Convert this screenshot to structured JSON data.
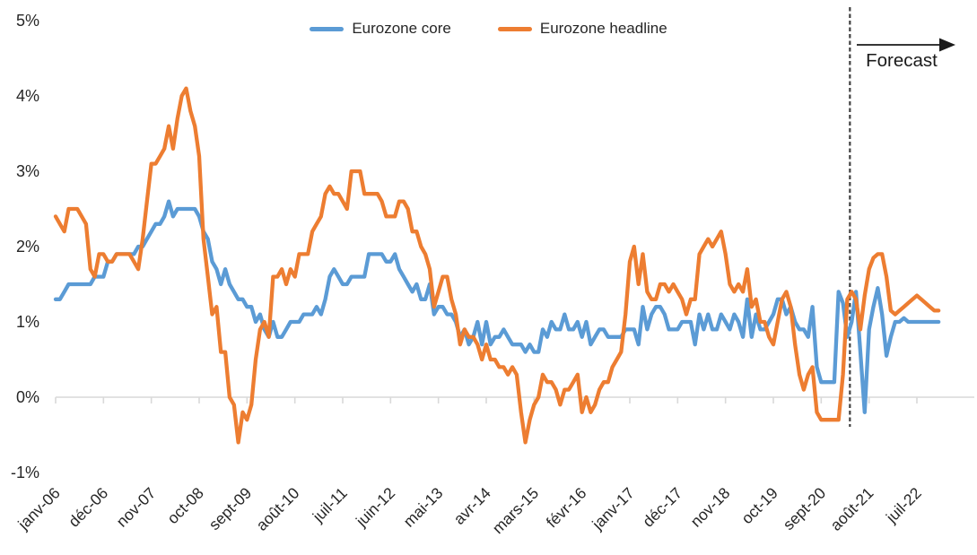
{
  "chart_data": {
    "type": "line",
    "title": "",
    "legend_position": "top-center",
    "grid": "zero-axis-only",
    "y_axis": {
      "tick_labels": [
        "5%",
        "4%",
        "3%",
        "2%",
        "1%",
        "0%",
        "-1%"
      ],
      "tick_values": [
        5,
        4,
        3,
        2,
        1,
        0,
        -1
      ],
      "ylim": [
        -1.1,
        5.2
      ],
      "unit": "percent"
    },
    "x_axis": {
      "unit": "month",
      "start": "janv-06",
      "end_of_data": "déc-22",
      "tick_labels": [
        "janv-06",
        "déc-06",
        "nov-07",
        "oct-08",
        "sept-09",
        "août-10",
        "juil-11",
        "juin-12",
        "mai-13",
        "avr-14",
        "mars-15",
        "févr-16",
        "janv-17",
        "déc-17",
        "nov-18",
        "oct-19",
        "sept-20",
        "août-21",
        "juil-22"
      ],
      "months_between_ticks": 11,
      "total_months": 204
    },
    "forecast": {
      "label": "Forecast",
      "boundary_month_index": 182.6,
      "boundary_between": [
        "mars-21",
        "avr-21"
      ]
    },
    "series": [
      {
        "name": "Eurozone core",
        "color": "#5B9BD5",
        "values": [
          1.3,
          1.3,
          1.4,
          1.5,
          1.5,
          1.5,
          1.5,
          1.5,
          1.5,
          1.6,
          1.6,
          1.6,
          1.8,
          1.8,
          1.9,
          1.9,
          1.9,
          1.9,
          1.9,
          2.0,
          2.0,
          2.1,
          2.2,
          2.3,
          2.3,
          2.4,
          2.6,
          2.4,
          2.5,
          2.5,
          2.5,
          2.5,
          2.5,
          2.4,
          2.2,
          2.1,
          1.8,
          1.7,
          1.5,
          1.7,
          1.5,
          1.4,
          1.3,
          1.3,
          1.2,
          1.2,
          1.0,
          1.1,
          0.9,
          0.8,
          1.0,
          0.8,
          0.8,
          0.9,
          1.0,
          1.0,
          1.0,
          1.1,
          1.1,
          1.1,
          1.2,
          1.1,
          1.3,
          1.6,
          1.7,
          1.6,
          1.5,
          1.5,
          1.6,
          1.6,
          1.6,
          1.6,
          1.9,
          1.9,
          1.9,
          1.9,
          1.8,
          1.8,
          1.9,
          1.7,
          1.6,
          1.5,
          1.4,
          1.5,
          1.3,
          1.3,
          1.5,
          1.1,
          1.2,
          1.2,
          1.1,
          1.1,
          1.0,
          0.8,
          0.9,
          0.7,
          0.8,
          1.0,
          0.7,
          1.0,
          0.7,
          0.8,
          0.8,
          0.9,
          0.8,
          0.7,
          0.7,
          0.7,
          0.6,
          0.7,
          0.6,
          0.6,
          0.9,
          0.8,
          1.0,
          0.9,
          0.9,
          1.1,
          0.9,
          0.9,
          1.0,
          0.8,
          1.0,
          0.7,
          0.8,
          0.9,
          0.9,
          0.8,
          0.8,
          0.8,
          0.8,
          0.9,
          0.9,
          0.9,
          0.7,
          1.2,
          0.9,
          1.1,
          1.2,
          1.2,
          1.1,
          0.9,
          0.9,
          0.9,
          1.0,
          1.0,
          1.0,
          0.7,
          1.1,
          0.9,
          1.1,
          0.9,
          0.9,
          1.1,
          1.0,
          0.9,
          1.1,
          1.0,
          0.8,
          1.3,
          0.8,
          1.1,
          0.9,
          0.9,
          1.0,
          1.1,
          1.3,
          1.3,
          1.1,
          1.2,
          1.0,
          0.9,
          0.9,
          0.8,
          1.2,
          0.4,
          0.2,
          0.2,
          0.2,
          0.2,
          1.4,
          1.25,
          0.8,
          1.0,
          1.4,
          0.6,
          -0.2,
          0.9,
          1.2,
          1.45,
          1.1,
          0.55,
          0.8,
          1.0,
          1.0,
          1.05,
          1.0,
          1.0,
          1.0,
          1.0,
          1.0,
          1.0,
          1.0,
          1.0
        ]
      },
      {
        "name": "Eurozone headline",
        "color": "#ED7D31",
        "values": [
          2.4,
          2.3,
          2.2,
          2.5,
          2.5,
          2.5,
          2.4,
          2.3,
          1.7,
          1.6,
          1.9,
          1.9,
          1.8,
          1.8,
          1.9,
          1.9,
          1.9,
          1.9,
          1.8,
          1.7,
          2.1,
          2.6,
          3.1,
          3.1,
          3.2,
          3.3,
          3.6,
          3.3,
          3.7,
          4.0,
          4.1,
          3.8,
          3.6,
          3.2,
          2.1,
          1.6,
          1.1,
          1.2,
          0.6,
          0.6,
          0.0,
          -0.1,
          -0.6,
          -0.2,
          -0.3,
          -0.1,
          0.5,
          0.9,
          1.0,
          0.8,
          1.6,
          1.6,
          1.7,
          1.5,
          1.7,
          1.6,
          1.9,
          1.9,
          1.9,
          2.2,
          2.3,
          2.4,
          2.7,
          2.8,
          2.7,
          2.7,
          2.6,
          2.5,
          3.0,
          3.0,
          3.0,
          2.7,
          2.7,
          2.7,
          2.7,
          2.6,
          2.4,
          2.4,
          2.4,
          2.6,
          2.6,
          2.5,
          2.2,
          2.2,
          2.0,
          1.9,
          1.7,
          1.2,
          1.4,
          1.6,
          1.6,
          1.3,
          1.1,
          0.7,
          0.9,
          0.8,
          0.8,
          0.7,
          0.5,
          0.7,
          0.5,
          0.5,
          0.4,
          0.4,
          0.3,
          0.4,
          0.3,
          -0.2,
          -0.6,
          -0.3,
          -0.1,
          0.0,
          0.3,
          0.2,
          0.2,
          0.1,
          -0.1,
          0.1,
          0.1,
          0.2,
          0.3,
          -0.2,
          0.0,
          -0.2,
          -0.1,
          0.1,
          0.2,
          0.2,
          0.4,
          0.5,
          0.6,
          1.1,
          1.8,
          2.0,
          1.5,
          1.9,
          1.4,
          1.3,
          1.3,
          1.5,
          1.5,
          1.4,
          1.5,
          1.4,
          1.3,
          1.1,
          1.3,
          1.3,
          1.9,
          2.0,
          2.1,
          2.0,
          2.1,
          2.2,
          1.9,
          1.5,
          1.4,
          1.5,
          1.4,
          1.7,
          1.2,
          1.3,
          1.0,
          1.0,
          0.8,
          0.7,
          1.0,
          1.3,
          1.4,
          1.2,
          0.7,
          0.3,
          0.1,
          0.3,
          0.4,
          -0.2,
          -0.3,
          -0.3,
          -0.3,
          -0.3,
          -0.3,
          0.3,
          1.3,
          1.4,
          1.3,
          0.9,
          1.35,
          1.7,
          1.85,
          1.9,
          1.9,
          1.6,
          1.15,
          1.1,
          1.15,
          1.2,
          1.25,
          1.3,
          1.35,
          1.3,
          1.25,
          1.2,
          1.15,
          1.15
        ]
      }
    ]
  },
  "colors": {
    "core_line": "#5B9BD5",
    "headline_line": "#ED7D31",
    "axis_line": "#D9D9D9",
    "dashed_forecast_line": "#404040",
    "text": "#262626",
    "background": "#FFFFFF"
  }
}
